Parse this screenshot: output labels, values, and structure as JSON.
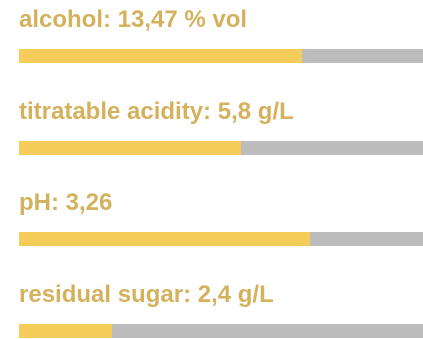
{
  "colors": {
    "label": "#d4b25d",
    "fill": "#f4cc5a",
    "track": "#bcbcbc",
    "background": "#ffffff"
  },
  "stats": [
    {
      "label": "alcohol: 13,47 % vol",
      "level": 0.7
    },
    {
      "label": "titratable acidity: 5,8 g/L",
      "level": 0.55
    },
    {
      "label": "pH: 3,26",
      "level": 0.72
    },
    {
      "label": "residual sugar: 2,4 g/L",
      "level": 0.23
    }
  ]
}
